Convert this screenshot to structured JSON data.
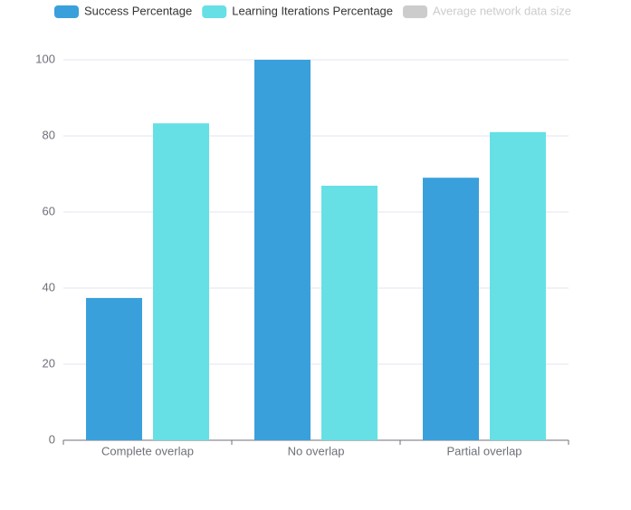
{
  "chart_data": {
    "type": "bar",
    "categories": [
      "Complete overlap",
      "No overlap",
      "Partial overlap"
    ],
    "series": [
      {
        "name": "Success Percentage",
        "color": "#3aa0db",
        "values": [
          37.4,
          100,
          69
        ]
      },
      {
        "name": "Learning Iterations Percentage",
        "color": "#66e0e5",
        "values": [
          83.3,
          66.9,
          81
        ]
      },
      {
        "name": "Average network data size",
        "color": "#cccccc",
        "hidden": true
      }
    ],
    "ylim": [
      0,
      100
    ],
    "yticks": [
      0,
      20,
      40,
      60,
      80,
      100
    ],
    "grid": true,
    "legend": "top"
  }
}
